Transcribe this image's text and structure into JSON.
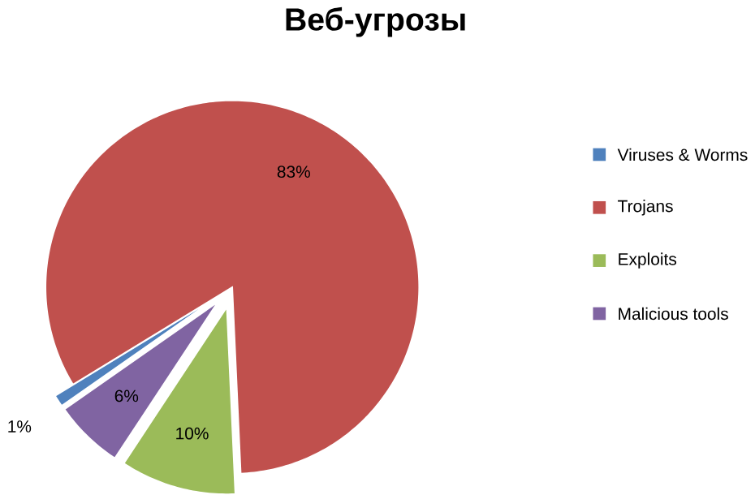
{
  "chart_data": {
    "type": "pie",
    "title": "Веб-угрозы",
    "categories": [
      "Viruses & Worms",
      "Trojans",
      "Exploits",
      "Malicious tools"
    ],
    "values": [
      1,
      83,
      10,
      6
    ],
    "colors": [
      "#4f81bd",
      "#c0504d",
      "#9bbb59",
      "#8064a2"
    ],
    "value_labels": [
      "1%",
      "83%",
      "10%",
      "6%"
    ],
    "legend": "right"
  }
}
